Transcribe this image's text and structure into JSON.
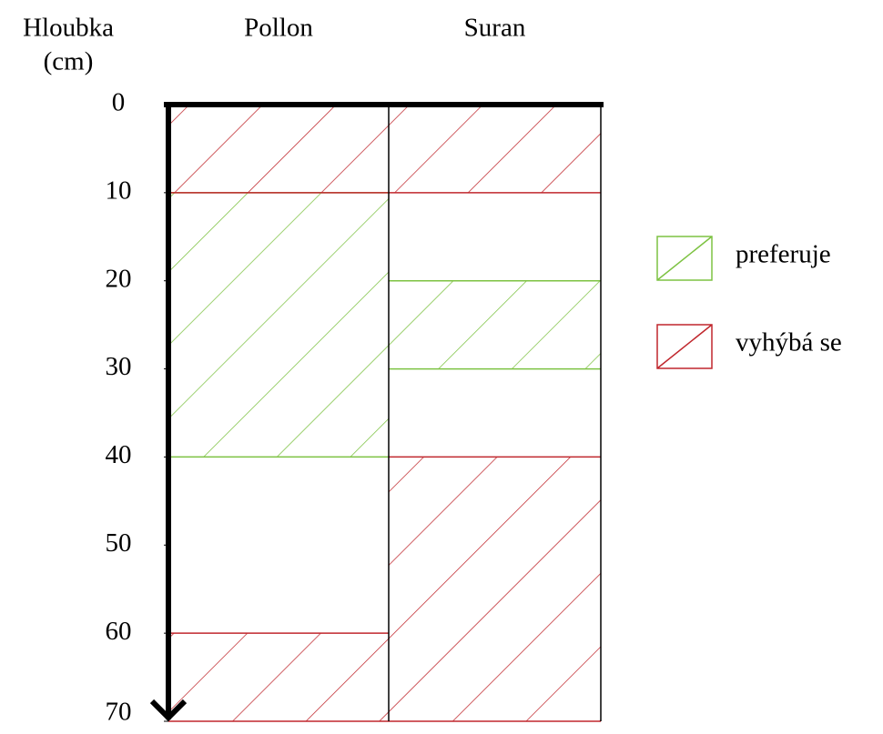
{
  "chart_data": {
    "type": "zones",
    "ylabel": [
      "Hloubka",
      "(cm)"
    ],
    "categories": [
      "Pollon",
      "Suran"
    ],
    "ylim": [
      0,
      70
    ],
    "yticks": [
      0,
      10,
      20,
      30,
      40,
      50,
      60,
      70
    ],
    "series": [
      {
        "name": "preferuje",
        "color": "#7dc242",
        "ranges": [
          [
            [
              10,
              40
            ]
          ],
          [
            [
              20,
              30
            ]
          ]
        ]
      },
      {
        "name": "vyhýbá se",
        "color": "#c0272d",
        "ranges": [
          [
            [
              0,
              10
            ],
            [
              60,
              70
            ]
          ],
          [
            [
              0,
              10
            ],
            [
              40,
              70
            ]
          ]
        ]
      }
    ]
  }
}
